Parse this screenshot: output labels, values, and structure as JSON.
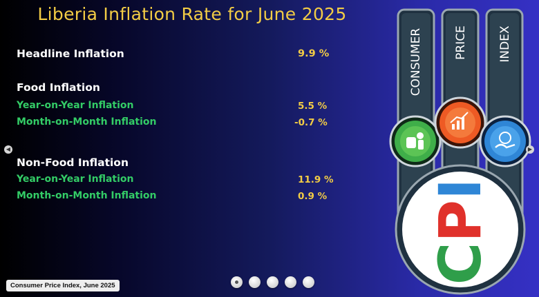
{
  "slide": {
    "title": "Liberia Inflation Rate for June 2025",
    "headline": {
      "label": "Headline Inflation",
      "value": "9.9 %"
    },
    "food": {
      "heading": "Food Inflation",
      "yoy": {
        "label": "Year-on-Year Inflation",
        "value": "5.5 %"
      },
      "mom": {
        "label": "Month-on-Month Inflation",
        "value": "-0.7 %"
      }
    },
    "nonfood": {
      "heading": "Non-Food Inflation",
      "yoy": {
        "label": "Year-on-Year Inflation",
        "value": "11.9 %"
      },
      "mom": {
        "label": "Month-on-Month Inflation",
        "value": "0.9 %"
      }
    },
    "caption": "Consumer Price Index, June 2025"
  },
  "graphic": {
    "columns": [
      "CONSUMER",
      "PRICE",
      "INDEX"
    ],
    "logo_text": "CPI",
    "icons": [
      "consumer-icon",
      "price-chart-icon",
      "hand-money-icon"
    ],
    "colors": {
      "title": "#f2cc45",
      "green_label": "#33cc66",
      "column": "#2d4250",
      "green_circle": "#3fae49",
      "orange_circle": "#ee5a24",
      "blue_circle": "#2f86d6",
      "logo_green": "#2f9e4a",
      "logo_red": "#e0312b",
      "logo_blue": "#2f86d6"
    }
  },
  "carousel": {
    "slide_count": 5,
    "active_index": 0
  },
  "nav": {
    "prev": "◀",
    "next": "▶"
  }
}
